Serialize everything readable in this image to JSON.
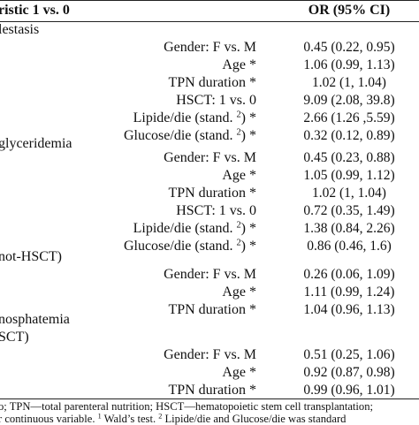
{
  "header": {
    "col1": "ristic 1 vs. 0",
    "col2": "OR (95% CI)"
  },
  "sections": [
    {
      "title": "lestasis",
      "rows": [
        {
          "var": "Gender: F vs. M",
          "sup": "",
          "tail": "",
          "or": "0.45 (0.22, 0.95)"
        },
        {
          "var": "Age *",
          "sup": "",
          "tail": "",
          "or": "1.06 (0.99, 1.13)"
        },
        {
          "var": "TPN duration *",
          "sup": "",
          "tail": "",
          "or": "1.02 (1, 1.04)"
        },
        {
          "var": "HSCT: 1 vs. 0",
          "sup": "",
          "tail": "",
          "or": "9.09 (2.08, 39.8)"
        },
        {
          "var": "Lipide/die (stand. ",
          "sup": "2",
          "tail": ") *",
          "or": "2.66 (1.26 ,5.59)"
        },
        {
          "var": "Glucose/die (stand. ",
          "sup": "2",
          "tail": ") *",
          "or": "0.32 (0.12, 0.89)"
        }
      ]
    },
    {
      "title": "glyceridemia",
      "rows": [
        {
          "var": "Gender: F vs. M",
          "sup": "",
          "tail": "",
          "or": "0.45 (0.23, 0.88)"
        },
        {
          "var": "Age *",
          "sup": "",
          "tail": "",
          "or": "1.05 (0.99, 1.12)"
        },
        {
          "var": "TPN duration *",
          "sup": "",
          "tail": "",
          "or": "1.02 (1, 1.04)"
        },
        {
          "var": "HSCT: 1 vs. 0",
          "sup": "",
          "tail": "",
          "or": "0.72 (0.35, 1.49)"
        },
        {
          "var": "Lipide/die (stand. ",
          "sup": "2",
          "tail": ") *",
          "or": "1.38 (0.84, 2.26)"
        },
        {
          "var": "Glucose/die (stand. ",
          "sup": "2",
          "tail": ") *",
          "or": "0.86 (0.46, 1.6)"
        }
      ]
    },
    {
      "title": "not-HSCT)",
      "rows": [
        {
          "var": "Gender: F vs. M",
          "sup": "",
          "tail": "",
          "or": "0.26 (0.06, 1.09)"
        },
        {
          "var": "Age *",
          "sup": "",
          "tail": "",
          "or": "1.11 (0.99, 1.24)"
        },
        {
          "var": "TPN duration *",
          "sup": "",
          "tail": "",
          "or": "1.04 (0.96, 1.13)"
        }
      ]
    },
    {
      "title": "nosphatemia",
      "title2": "SCT)",
      "rows": [
        {
          "var": "Gender: F vs. M",
          "sup": "",
          "tail": "",
          "or": "0.51 (0.25, 1.06)"
        },
        {
          "var": "Age *",
          "sup": "",
          "tail": "",
          "or": "0.92 (0.87, 0.98)"
        },
        {
          "var": "TPN duration *",
          "sup": "",
          "tail": "",
          "or": "0.99 (0.96, 1.01)"
        }
      ]
    }
  ],
  "footnote": {
    "line1": "o; TPN—total parenteral nutrition; HSCT—hematopoietic stem cell transplantation;",
    "line2a": "r continuous variable. ",
    "sup1": "1",
    "line2b": " Wald’s test. ",
    "sup2": "2",
    "line2c": " Lipide/die and Glucose/die was standard"
  }
}
